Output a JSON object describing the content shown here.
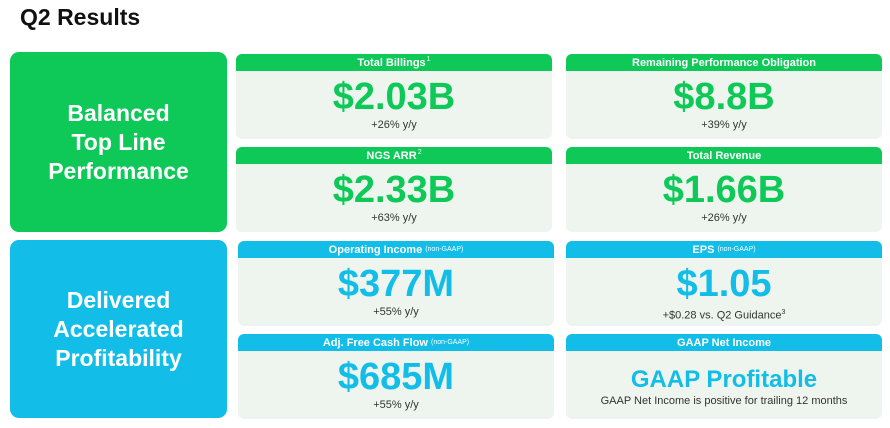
{
  "title": "Q2 Results",
  "sections": {
    "top_line": "Balanced\nTop Line\nPerformance",
    "profitability": "Delivered\nAccelerated\nProfitability"
  },
  "cards": {
    "total_billings": {
      "label": "Total Billings",
      "footnote": "1",
      "value": "$2.03B",
      "change": "+26% y/y"
    },
    "rpo": {
      "label": "Remaining Performance Obligation",
      "value": "$8.8B",
      "change": "+39% y/y"
    },
    "ngs_arr": {
      "label": "NGS ARR",
      "footnote": "2",
      "value": "$2.33B",
      "change": "+63% y/y"
    },
    "total_revenue": {
      "label": "Total Revenue",
      "value": "$1.66B",
      "change": "+26% y/y"
    },
    "operating_income": {
      "label": "Operating Income",
      "tag": "(non-GAAP)",
      "value": "$377M",
      "change": "+55% y/y"
    },
    "eps": {
      "label": "EPS",
      "tag": "(non-GAAP)",
      "value": "$1.05",
      "change": "+$0.28 vs. Q2 Guidance",
      "footnote": "3"
    },
    "fcf": {
      "label": "Adj. Free Cash Flow",
      "tag": "(non-GAAP)",
      "value": "$685M",
      "change": "+55% y/y"
    },
    "gaap_net_income": {
      "label": "GAAP Net Income",
      "value": "GAAP Profitable",
      "change": "GAAP Net Income is positive for trailing 12 months"
    }
  },
  "colors": {
    "green": "#0ec958",
    "blue": "#12bde8"
  }
}
